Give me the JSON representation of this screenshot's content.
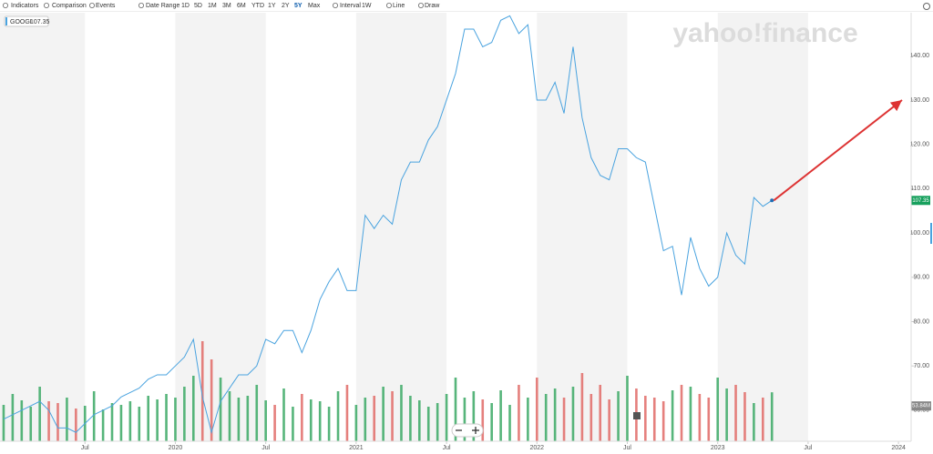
{
  "toolbar": {
    "items": [
      "Indicators",
      "Comparison",
      "Events",
      "Date Range",
      "1D",
      "5D",
      "1M",
      "3M",
      "6M",
      "YTD",
      "1Y",
      "2Y",
      "5Y",
      "Max",
      "Interval",
      "1W",
      "Line",
      "Draw"
    ],
    "active": "5Y"
  },
  "chart_data": {
    "type": "line",
    "watermark": "yahoo!finance",
    "x": [
      2019.05,
      2019.1,
      2019.15,
      2019.2,
      2019.25,
      2019.3,
      2019.35,
      2019.4,
      2019.45,
      2019.5,
      2019.55,
      2019.6,
      2019.65,
      2019.7,
      2019.75,
      2019.8,
      2019.85,
      2019.9,
      2019.95,
      2020.0,
      2020.05,
      2020.1,
      2020.15,
      2020.2,
      2020.25,
      2020.3,
      2020.35,
      2020.4,
      2020.45,
      2020.5,
      2020.55,
      2020.6,
      2020.65,
      2020.7,
      2020.75,
      2020.8,
      2020.85,
      2020.9,
      2020.95,
      2021.0,
      2021.05,
      2021.1,
      2021.15,
      2021.2,
      2021.25,
      2021.3,
      2021.35,
      2021.4,
      2021.45,
      2021.5,
      2021.55,
      2021.6,
      2021.65,
      2021.7,
      2021.75,
      2021.8,
      2021.85,
      2021.9,
      2021.95,
      2022.0,
      2022.05,
      2022.1,
      2022.15,
      2022.2,
      2022.25,
      2022.3,
      2022.35,
      2022.4,
      2022.45,
      2022.5,
      2022.55,
      2022.6,
      2022.65,
      2022.7,
      2022.75,
      2022.8,
      2022.85,
      2022.9,
      2022.95,
      2023.0,
      2023.05,
      2023.1,
      2023.15,
      2023.2,
      2023.25,
      2023.3
    ],
    "series": [
      {
        "name": "GOOGL",
        "color": "#4aa3df",
        "values": [
          58,
          59,
          60,
          61,
          62,
          60,
          56,
          56,
          55,
          57,
          59,
          60,
          61,
          63,
          64,
          65,
          67,
          68,
          68,
          70,
          72,
          76,
          63,
          55,
          62,
          65,
          68,
          68,
          70,
          76,
          75,
          78,
          78,
          73,
          78,
          85,
          89,
          92,
          87,
          87,
          104,
          101,
          104,
          102,
          112,
          116,
          116,
          121,
          124,
          130,
          136,
          146,
          146,
          142,
          143,
          148,
          149,
          145,
          147,
          130,
          130,
          134,
          127,
          142,
          126,
          117,
          113,
          112,
          119,
          119,
          117,
          116,
          106,
          96,
          97,
          86,
          99,
          92,
          88,
          90,
          100,
          95,
          93,
          108,
          106,
          107.35
        ]
      }
    ],
    "last_label": "107.35",
    "volume": {
      "values": [
        40,
        52,
        45,
        38,
        60,
        44,
        42,
        48,
        36,
        39,
        55,
        35,
        42,
        40,
        44,
        38,
        50,
        46,
        52,
        48,
        60,
        72,
        110,
        90,
        70,
        55,
        48,
        50,
        62,
        45,
        40,
        58,
        38,
        52,
        46,
        44,
        38,
        55,
        62,
        40,
        48,
        50,
        60,
        55,
        62,
        50,
        45,
        38,
        42,
        52,
        70,
        48,
        55,
        46,
        42,
        56,
        40,
        62,
        48,
        70,
        52,
        58,
        48,
        60,
        75,
        52,
        62,
        46,
        55,
        72,
        58,
        50,
        48,
        44,
        56,
        62,
        60,
        52,
        48,
        70,
        58,
        62,
        54,
        42,
        48,
        53.84
      ],
      "up_color": "#3aa864",
      "down_color": "#e06a66",
      "last_label": "53.84M"
    },
    "xlim": [
      2019.03,
      2024.07
    ],
    "xticks": [
      {
        "value": 2019.5,
        "label": "Jul"
      },
      {
        "value": 2020,
        "label": "2020"
      },
      {
        "value": 2020.5,
        "label": "Jul"
      },
      {
        "value": 2021,
        "label": "2021"
      },
      {
        "value": 2021.5,
        "label": "Jul"
      },
      {
        "value": 2022,
        "label": "2022"
      },
      {
        "value": 2022.5,
        "label": "Jul"
      },
      {
        "value": 2023,
        "label": "2023"
      },
      {
        "value": 2023.5,
        "label": "Jul"
      },
      {
        "value": 2024,
        "label": "2024"
      }
    ],
    "ylim": [
      53,
      149.7
    ],
    "yticks": [
      {
        "value": 60,
        "label": "60.00"
      },
      {
        "value": 70,
        "label": "70.00"
      },
      {
        "value": 80,
        "label": "80.00"
      },
      {
        "value": 90,
        "label": "90.00"
      },
      {
        "value": 100,
        "label": "100.00"
      },
      {
        "value": 110,
        "label": "110.00"
      },
      {
        "value": 120,
        "label": "120.00"
      },
      {
        "value": 130,
        "label": "130.00"
      },
      {
        "value": 140,
        "label": "140.00"
      }
    ],
    "shade_color": "#f3f3f3",
    "grid": false
  }
}
